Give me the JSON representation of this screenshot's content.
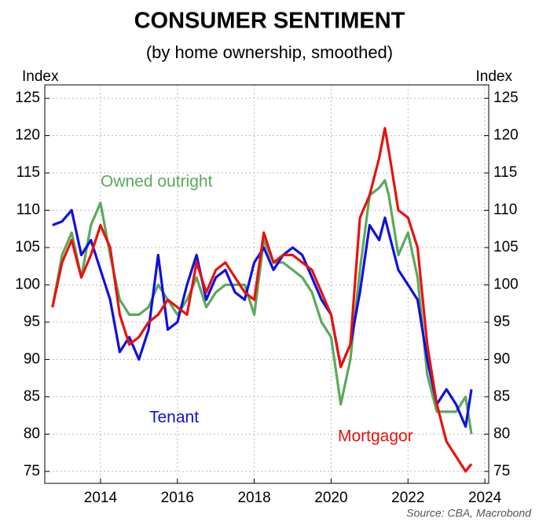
{
  "chart_data": {
    "type": "line",
    "title": "CONSUMER SENTIMENT",
    "subtitle": "(by home ownership, smoothed)",
    "ylabel": "Index",
    "y2label": "Index",
    "source": "Source: CBA, Macrobond",
    "x": [
      2012.75,
      2013.0,
      2013.25,
      2013.5,
      2013.75,
      2014.0,
      2014.25,
      2014.5,
      2014.75,
      2015.0,
      2015.25,
      2015.5,
      2015.75,
      2016.0,
      2016.25,
      2016.5,
      2016.75,
      2017.0,
      2017.25,
      2017.5,
      2017.75,
      2018.0,
      2018.25,
      2018.5,
      2018.75,
      2019.0,
      2019.25,
      2019.5,
      2019.75,
      2020.0,
      2020.25,
      2020.5,
      2020.75,
      2021.0,
      2021.25,
      2021.4,
      2021.5,
      2021.75,
      2022.0,
      2022.25,
      2022.5,
      2022.75,
      2023.0,
      2023.25,
      2023.5,
      2023.65
    ],
    "series": [
      {
        "name": "Owned outright",
        "color": "#5aaa5a",
        "values": [
          97,
          104,
          107,
          101,
          108,
          111,
          104,
          98,
          96,
          96,
          97,
          100,
          98,
          96,
          98,
          101,
          97,
          99,
          100,
          100,
          100,
          96,
          106,
          103,
          103,
          102,
          101,
          99,
          95,
          93,
          84,
          90,
          102,
          112,
          113,
          114,
          112,
          104,
          107,
          101,
          88,
          83,
          83,
          83,
          85,
          80
        ]
      },
      {
        "name": "Tenant",
        "color": "#1010e0",
        "values": [
          108,
          108.5,
          110,
          104,
          106,
          102,
          98,
          91,
          93,
          90,
          94,
          104,
          94,
          95,
          100,
          104,
          98,
          101,
          102,
          99,
          98,
          103,
          105,
          102,
          104,
          105,
          104,
          101,
          98,
          96,
          89,
          92,
          99,
          108,
          106,
          109,
          107,
          102,
          100,
          98,
          90,
          84,
          86,
          84,
          81,
          86
        ]
      },
      {
        "name": "Mortgagor",
        "color": "#e8120c",
        "values": [
          97,
          103,
          106,
          101,
          104,
          108,
          105,
          96,
          92,
          93,
          95,
          96,
          98,
          97,
          96,
          103,
          99,
          102,
          103,
          101,
          99,
          98,
          107,
          103,
          104,
          104,
          103,
          102,
          99,
          96,
          89,
          92,
          109,
          112,
          117,
          121,
          118,
          110,
          109,
          105,
          92,
          84,
          79,
          77,
          75,
          76
        ]
      }
    ],
    "xlim": [
      2012.55,
      2024.1
    ],
    "xticks": [
      2014,
      2016,
      2018,
      2020,
      2022,
      2024
    ],
    "ylim": [
      73.4,
      126.8
    ],
    "yticks": [
      75,
      80,
      85,
      90,
      95,
      100,
      105,
      110,
      115,
      120,
      125
    ],
    "grid": true
  }
}
